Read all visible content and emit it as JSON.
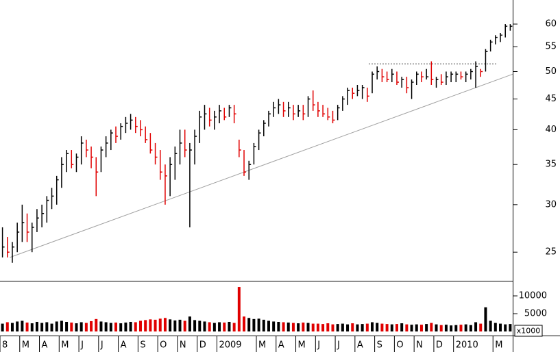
{
  "chart_data": {
    "type": "ohlc",
    "log_y": true,
    "up_color": "#000000",
    "down_color": "#e00000",
    "trendline_color": "#a0a0a0",
    "resistance_color": "#444444",
    "xlim": [
      0,
      26
    ],
    "xticks": [
      {
        "value": 0,
        "label": "8"
      },
      {
        "value": 1,
        "label": "M"
      },
      {
        "value": 2,
        "label": "A"
      },
      {
        "value": 3,
        "label": "M"
      },
      {
        "value": 4,
        "label": "J"
      },
      {
        "value": 5,
        "label": "J"
      },
      {
        "value": 6,
        "label": "A"
      },
      {
        "value": 7,
        "label": "S"
      },
      {
        "value": 8,
        "label": "O"
      },
      {
        "value": 9,
        "label": "N"
      },
      {
        "value": 10,
        "label": "D"
      },
      {
        "value": 11,
        "label": "2009"
      },
      {
        "value": 13,
        "label": "M"
      },
      {
        "value": 14,
        "label": "A"
      },
      {
        "value": 15,
        "label": "M"
      },
      {
        "value": 16,
        "label": "J"
      },
      {
        "value": 17,
        "label": "J"
      },
      {
        "value": 18,
        "label": "A"
      },
      {
        "value": 19,
        "label": "S"
      },
      {
        "value": 20,
        "label": "O"
      },
      {
        "value": 21,
        "label": "N"
      },
      {
        "value": 22,
        "label": "D"
      },
      {
        "value": 23,
        "label": "2010"
      },
      {
        "value": 25,
        "label": "M"
      }
    ],
    "ylim": [
      22.4,
      65.8
    ],
    "yticks": [
      25,
      30,
      35,
      40,
      45,
      50,
      55,
      60
    ],
    "volume_lim": [
      -1150,
      14050
    ],
    "volume_ticks": [
      5000,
      10000
    ],
    "volume_unit": "x1000",
    "trendline": {
      "x": [
        0.5,
        26
      ],
      "y": [
        24.5,
        49.5
      ]
    },
    "resistance": {
      "x": [
        18.7,
        25.2
      ],
      "y": 51.5
    },
    "x": [
      0.125,
      0.375,
      0.625,
      0.875,
      1.125,
      1.375,
      1.625,
      1.875,
      2.125,
      2.375,
      2.625,
      2.875,
      3.125,
      3.375,
      3.625,
      3.875,
      4.125,
      4.375,
      4.625,
      4.875,
      5.125,
      5.375,
      5.625,
      5.875,
      6.125,
      6.375,
      6.625,
      6.875,
      7.125,
      7.375,
      7.625,
      7.875,
      8.125,
      8.375,
      8.625,
      8.875,
      9.125,
      9.375,
      9.625,
      9.875,
      10.125,
      10.375,
      10.625,
      10.875,
      11.125,
      11.375,
      11.625,
      11.875,
      12.125,
      12.375,
      12.625,
      12.875,
      13.125,
      13.375,
      13.625,
      13.875,
      14.125,
      14.375,
      14.625,
      14.875,
      15.125,
      15.375,
      15.625,
      15.875,
      16.125,
      16.375,
      16.625,
      16.875,
      17.125,
      17.375,
      17.625,
      17.875,
      18.125,
      18.375,
      18.625,
      18.875,
      19.125,
      19.375,
      19.625,
      19.875,
      20.125,
      20.375,
      20.625,
      20.875,
      21.125,
      21.375,
      21.625,
      21.875,
      22.125,
      22.375,
      22.625,
      22.875,
      23.125,
      23.375,
      23.625,
      23.875,
      24.125,
      24.375,
      24.625,
      24.875,
      25.125,
      25.375,
      25.625,
      25.875
    ],
    "low": [
      24.5,
      24.5,
      24,
      25,
      26,
      26,
      25,
      27,
      27.5,
      28,
      29.5,
      30,
      32,
      34,
      34.5,
      34,
      35,
      36,
      34.5,
      31,
      34,
      36,
      37,
      38,
      38.5,
      39.5,
      40,
      39.5,
      39,
      38,
      36.5,
      35,
      33,
      30,
      31,
      33,
      35,
      36,
      27.5,
      35,
      38,
      40,
      40.5,
      40,
      41,
      41.5,
      42,
      41,
      36,
      33.5,
      33,
      35,
      37,
      39,
      40.5,
      42,
      42.5,
      42,
      42,
      41.5,
      42,
      41.5,
      42,
      43,
      42,
      42,
      41.5,
      41,
      41.5,
      43,
      44,
      45,
      45.5,
      45,
      44.5,
      46,
      48.5,
      48,
      48,
      48,
      47.5,
      47,
      46,
      45,
      47.5,
      48,
      48.5,
      47.5,
      47,
      47.5,
      47.5,
      48,
      48,
      48.5,
      48,
      48.5,
      47,
      49,
      50,
      54,
      55.5,
      56,
      57,
      58.5
    ],
    "high": [
      27.5,
      26.5,
      26,
      28,
      30,
      29,
      28,
      29.5,
      30,
      31,
      32,
      33.5,
      36,
      37,
      37,
      36.5,
      39,
      38.5,
      37.5,
      36,
      37.5,
      39,
      40,
      40.5,
      41,
      42,
      42.5,
      42,
      41.5,
      40.5,
      39.5,
      38,
      37,
      35,
      36,
      37.5,
      40,
      40,
      38,
      40,
      43,
      44,
      43.5,
      43,
      44,
      43.5,
      44,
      44,
      38.5,
      37,
      35.5,
      38,
      40,
      41.5,
      43,
      44.5,
      45,
      44.5,
      44.5,
      44,
      44,
      44,
      45.5,
      46.5,
      44.5,
      44,
      43.5,
      43,
      44,
      45.5,
      47,
      47,
      47.5,
      47.5,
      47,
      50,
      51,
      50.5,
      50,
      50.5,
      50,
      49,
      49,
      48.5,
      50,
      50,
      50.5,
      52,
      49,
      49.5,
      50,
      50,
      50,
      50,
      50,
      50.5,
      52,
      50.5,
      54.5,
      56.5,
      57.5,
      58,
      60,
      60
    ],
    "close": [
      25.5,
      25,
      25.5,
      27,
      28,
      27,
      27.5,
      28.5,
      29,
      30.5,
      31,
      33,
      35,
      36.5,
      35,
      36,
      38,
      37,
      36,
      34,
      37,
      38,
      39.5,
      39,
      40.5,
      41,
      41.5,
      40.5,
      40,
      38.5,
      37,
      36,
      34,
      33.5,
      35,
      36.5,
      38,
      37,
      37,
      39,
      42,
      42.5,
      41.5,
      42,
      43,
      42,
      43.5,
      42.5,
      37,
      34,
      35,
      37.5,
      39.5,
      41,
      42.5,
      43.5,
      44,
      43,
      43.5,
      42.5,
      43,
      42.5,
      45,
      44,
      43,
      42.5,
      42,
      41.5,
      43.5,
      45,
      46.5,
      46,
      46.5,
      47,
      45.5,
      49.5,
      50,
      49,
      48.5,
      49.5,
      48,
      48.5,
      47,
      48,
      49.5,
      49,
      49,
      48.5,
      48.5,
      48,
      49,
      49.5,
      49.5,
      49,
      49.5,
      50,
      51,
      50,
      54,
      56,
      57,
      57.5,
      59.5,
      59.5
    ],
    "volume": [
      2200,
      2600,
      2400,
      2800,
      3000,
      2500,
      2300,
      2700,
      2400,
      2600,
      2200,
      2800,
      3000,
      2700,
      2500,
      2300,
      2600,
      2400,
      2900,
      3500,
      2800,
      2600,
      2400,
      2500,
      2300,
      2500,
      2700,
      2600,
      3000,
      3200,
      3400,
      3300,
      3600,
      3800,
      3400,
      3100,
      3300,
      3000,
      4200,
      3200,
      3000,
      2800,
      2600,
      2400,
      2600,
      2500,
      2700,
      2400,
      12500,
      4200,
      3800,
      3500,
      3600,
      3300,
      3000,
      2800,
      2700,
      2600,
      2500,
      2400,
      2300,
      2500,
      2400,
      2200,
      2200,
      2100,
      2300,
      2000,
      2100,
      2200,
      2000,
      2300,
      2000,
      2100,
      2200,
      2600,
      2400,
      2200,
      2100,
      2000,
      2100,
      2300,
      2000,
      1900,
      2000,
      1900,
      2100,
      2400,
      2000,
      1800,
      1900,
      1700,
      1800,
      1900,
      2000,
      1800,
      2600,
      2200,
      6800,
      3000,
      2400,
      2200,
      2000,
      2100
    ]
  }
}
